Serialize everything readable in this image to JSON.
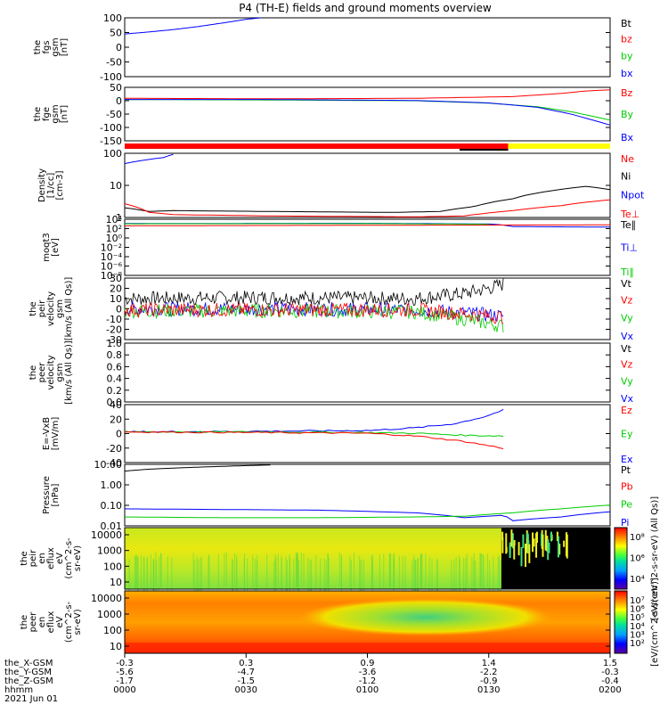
{
  "title": "P4 (TH-E) fields and ground moments overview",
  "chart_data": [
    {
      "id": "fgs",
      "type": "line",
      "ylabel": [
        "the",
        "fgs",
        "gsm",
        "[nT]"
      ],
      "yticks": [
        "100",
        "50",
        "0",
        "-50",
        "-100"
      ],
      "ylim": [
        -100,
        100
      ],
      "legend": [
        {
          "name": "Bt",
          "color": "#000000"
        },
        {
          "name": "bz",
          "color": "#ff0000"
        },
        {
          "name": "by",
          "color": "#00cc00"
        },
        {
          "name": "bx",
          "color": "#0000ff"
        }
      ],
      "series": [
        {
          "name": "bx",
          "color": "#0000ff",
          "x": [
            0.0,
            0.05,
            0.1,
            0.15,
            0.2,
            0.25,
            0.28
          ],
          "y": [
            45,
            52,
            60,
            70,
            82,
            95,
            100
          ]
        }
      ]
    },
    {
      "id": "fge",
      "type": "line",
      "ylabel": [
        "the",
        "fge",
        "gsm",
        "[nT]"
      ],
      "yticks": [
        "50",
        "0",
        "-50",
        "-100",
        "-150"
      ],
      "ylim": [
        -170,
        50
      ],
      "legend": [
        {
          "name": "Bz",
          "color": "#ff0000"
        },
        {
          "name": "By",
          "color": "#00cc00"
        },
        {
          "name": "Bx",
          "color": "#0000ff"
        }
      ],
      "series": [
        {
          "name": "Bz",
          "color": "#ff0000",
          "x": [
            0.0,
            0.3,
            0.6,
            0.8,
            0.9,
            0.95,
            1.0
          ],
          "y": [
            5,
            3,
            5,
            12,
            25,
            35,
            40
          ]
        },
        {
          "name": "By",
          "color": "#00cc00",
          "x": [
            0.0,
            0.3,
            0.6,
            0.75,
            0.85,
            0.92,
            1.0
          ],
          "y": [
            0,
            -2,
            -5,
            -15,
            -30,
            -50,
            -85
          ]
        },
        {
          "name": "Bx",
          "color": "#0000ff",
          "x": [
            0.0,
            0.3,
            0.6,
            0.75,
            0.85,
            0.92,
            1.0
          ],
          "y": [
            0,
            0,
            -4,
            -14,
            -32,
            -60,
            -105
          ]
        }
      ]
    },
    {
      "id": "density",
      "type": "line",
      "scale": "log",
      "ylabel": [
        "Density",
        "[1/cc]",
        "[cm-3]"
      ],
      "yticks": [
        "100",
        "10",
        "1"
      ],
      "ylim": [
        0.3,
        200
      ],
      "legend": [
        {
          "name": "Ne",
          "color": "#ff0000"
        },
        {
          "name": "Ni",
          "color": "#000000"
        },
        {
          "name": "Npot",
          "color": "#0000ff"
        },
        {
          "name": "Te⊥",
          "color": "#ff0000"
        }
      ],
      "series": [
        {
          "name": "Npot",
          "color": "#0000ff",
          "x": [
            0.0,
            0.04,
            0.08,
            0.1
          ],
          "y": [
            70,
            100,
            130,
            180
          ]
        },
        {
          "name": "Ni",
          "color": "#000000",
          "x": [
            0.0,
            0.05,
            0.1,
            0.3,
            0.55,
            0.65,
            0.72,
            0.8,
            0.88,
            0.95,
            1.0
          ],
          "y": [
            0.8,
            0.55,
            0.6,
            0.55,
            0.5,
            0.55,
            0.9,
            2.0,
            4.5,
            7,
            5
          ]
        },
        {
          "name": "Ne",
          "color": "#ff0000",
          "x": [
            0.0,
            0.05,
            0.1,
            0.3,
            0.6,
            0.7,
            0.8,
            0.9,
            1.0
          ],
          "y": [
            1.2,
            0.5,
            0.4,
            0.35,
            0.32,
            0.35,
            0.6,
            1.0,
            1.8
          ]
        }
      ]
    },
    {
      "id": "moqt3",
      "type": "line",
      "scale": "log",
      "ylabel": [
        "moqt3",
        "[eV]"
      ],
      "yticks": [
        "10⁴",
        "10²",
        "10⁰",
        "10⁻²",
        "10⁻⁴",
        "10⁻⁶",
        "10⁻⁸"
      ],
      "ylim": [
        1e-09,
        10000.0
      ],
      "legend": [
        {
          "name": "Te∥",
          "color": "#000000"
        },
        {
          "name": "Ti⊥",
          "color": "#0000ff"
        },
        {
          "name": "Ti∥",
          "color": "#00cc00"
        }
      ],
      "series": [
        {
          "name": "Ti⊥",
          "color": "#0000ff",
          "x": [
            0.0,
            0.5,
            0.75,
            0.8,
            1.0
          ],
          "y": [
            1000,
            1200,
            800,
            200,
            150
          ]
        },
        {
          "name": "Ti∥",
          "color": "#00cc00",
          "x": [
            0.0,
            0.5,
            0.75
          ],
          "y": [
            900,
            1000,
            700
          ]
        },
        {
          "name": "Te∥",
          "color": "#ff0000",
          "x": [
            0.0,
            0.5,
            1.0
          ],
          "y": [
            300,
            400,
            500
          ]
        }
      ]
    },
    {
      "id": "peir_velocity",
      "type": "line",
      "ylabel": [
        "the",
        "peir",
        "velocity",
        "gsm",
        "[km/s (All Qs)]"
      ],
      "yticks": [
        "30",
        "20",
        "10",
        "0",
        "-10",
        "-20",
        "-30"
      ],
      "ylim": [
        -30,
        30
      ],
      "legend": [
        {
          "name": "Vt",
          "color": "#000000"
        },
        {
          "name": "Vz",
          "color": "#ff0000"
        },
        {
          "name": "Vy",
          "color": "#00cc00"
        },
        {
          "name": "Vx",
          "color": "#0000ff"
        }
      ],
      "series": [
        {
          "name": "Vt",
          "color": "#000000",
          "x": [
            0.0,
            0.3,
            0.6,
            0.7,
            0.75,
            0.78
          ],
          "y": [
            10,
            11,
            10,
            15,
            20,
            24
          ]
        },
        {
          "name": "Vx",
          "color": "#0000ff",
          "x": [
            0.0,
            0.3,
            0.6,
            0.7,
            0.78
          ],
          "y": [
            0,
            0,
            -1,
            -4,
            -7
          ]
        },
        {
          "name": "Vy",
          "color": "#00cc00",
          "x": [
            0.0,
            0.3,
            0.6,
            0.7,
            0.78
          ],
          "y": [
            -2,
            -2,
            -3,
            -10,
            -17
          ]
        },
        {
          "name": "Vz",
          "color": "#ff0000",
          "x": [
            0.0,
            0.3,
            0.6,
            0.7,
            0.78
          ],
          "y": [
            -1,
            -1,
            -1,
            -5,
            -8
          ]
        }
      ]
    },
    {
      "id": "peer_velocity",
      "type": "line",
      "ylabel": [
        "the",
        "peer",
        "velocity",
        "gsm",
        "[km/s (All Qs)]"
      ],
      "yticks": [
        "1.0",
        "0.8",
        "0.6",
        "0.4",
        "0.2",
        "0.0"
      ],
      "ylim": [
        0,
        1
      ],
      "legend": [
        {
          "name": "Vt",
          "color": "#000000"
        },
        {
          "name": "Vz",
          "color": "#ff0000"
        },
        {
          "name": "Vy",
          "color": "#00cc00"
        },
        {
          "name": "Vx",
          "color": "#0000ff"
        }
      ],
      "series": []
    },
    {
      "id": "efield",
      "type": "line",
      "ylabel": [
        "E=-VxB",
        "[mV/m]"
      ],
      "yticks": [
        "40",
        "20",
        "0",
        "-20",
        "-40"
      ],
      "ylim": [
        -45,
        40
      ],
      "legend": [
        {
          "name": "Ez",
          "color": "#ff0000"
        },
        {
          "name": "Ey",
          "color": "#00cc00"
        },
        {
          "name": "Ex",
          "color": "#0000ff"
        }
      ],
      "series": [
        {
          "name": "Ex",
          "color": "#0000ff",
          "x": [
            0.0,
            0.3,
            0.5,
            0.6,
            0.68,
            0.74,
            0.78
          ],
          "y": [
            0,
            1,
            2,
            6,
            12,
            22,
            32
          ]
        },
        {
          "name": "Ey",
          "color": "#00cc00",
          "x": [
            0.0,
            0.3,
            0.5,
            0.6,
            0.7,
            0.78
          ],
          "y": [
            0,
            0,
            -1,
            -2,
            -5,
            -6
          ]
        },
        {
          "name": "Ez",
          "color": "#ff0000",
          "x": [
            0.0,
            0.3,
            0.5,
            0.6,
            0.7,
            0.78
          ],
          "y": [
            0,
            -1,
            -2,
            -6,
            -14,
            -24
          ]
        }
      ]
    },
    {
      "id": "pressure",
      "type": "line",
      "scale": "log",
      "ylabel": [
        "Pressure",
        "[nPa]"
      ],
      "yticks": [
        "10.00",
        "1.00",
        "0.10",
        "0.01"
      ],
      "ylim": [
        0.006,
        25
      ],
      "legend": [
        {
          "name": "Pt",
          "color": "#000000"
        },
        {
          "name": "Pb",
          "color": "#ff0000"
        },
        {
          "name": "Pe",
          "color": "#00cc00"
        },
        {
          "name": "Pi",
          "color": "#0000ff"
        }
      ],
      "series": [
        {
          "name": "Pt",
          "color": "#000000",
          "x": [
            0.0,
            0.05,
            0.1,
            0.15,
            0.2,
            0.25,
            0.3
          ],
          "y": [
            10,
            13,
            15,
            17,
            19,
            21,
            23
          ]
        },
        {
          "name": "Pi",
          "color": "#0000ff",
          "x": [
            0.0,
            0.2,
            0.4,
            0.6,
            0.7,
            0.78,
            0.8,
            0.9,
            1.0
          ],
          "y": [
            0.06,
            0.055,
            0.05,
            0.035,
            0.018,
            0.025,
            0.012,
            0.02,
            0.04
          ]
        },
        {
          "name": "Pe",
          "color": "#00cc00",
          "x": [
            0.0,
            0.2,
            0.4,
            0.6,
            0.7,
            0.8,
            0.9,
            1.0
          ],
          "y": [
            0.02,
            0.018,
            0.018,
            0.02,
            0.022,
            0.035,
            0.06,
            0.1
          ]
        }
      ]
    },
    {
      "id": "peir_eflux",
      "type": "heatmap",
      "ylabel": [
        "the",
        "peir",
        "en",
        "eflux",
        "eV",
        "(cm^2-s-",
        "sr-eV)"
      ],
      "yticks": [
        "10000",
        "1000",
        "100",
        "10"
      ],
      "colorbar_label": "[eV/(cm^2-s-sr-eV) (All Qs)]",
      "colorbar_ticks": [
        "10⁸",
        "10⁶",
        "10⁴"
      ]
    },
    {
      "id": "peer_eflux",
      "type": "heatmap",
      "ylabel": [
        "the",
        "peer",
        "en",
        "eflux",
        "eV",
        "(cm^2-s-",
        "sr-eV)"
      ],
      "yticks": [
        "10000",
        "1000",
        "100",
        "10"
      ],
      "colorbar_label": "[eV/(cm^2-s-sr-eV)]",
      "colorbar_ticks": [
        "10⁷",
        "10⁶",
        "10⁵",
        "10⁴",
        "10³",
        "10²"
      ]
    }
  ],
  "xaxis": {
    "rows": [
      {
        "label": "the_X-GSM",
        "values": [
          "-0.3",
          "0.3",
          "0.9",
          "1.4",
          "1.5"
        ]
      },
      {
        "label": "the_Y-GSM",
        "values": [
          "-5.6",
          "-4.7",
          "-3.6",
          "-2.2",
          "-0.3"
        ]
      },
      {
        "label": "the_Z-GSM",
        "values": [
          "-1.7",
          "-1.5",
          "-1.2",
          "-0.9",
          "-0.4"
        ]
      },
      {
        "label": "hhmm",
        "values": [
          "0000",
          "0030",
          "0100",
          "0130",
          "0200"
        ]
      }
    ],
    "date": "2021 Jun 01"
  }
}
